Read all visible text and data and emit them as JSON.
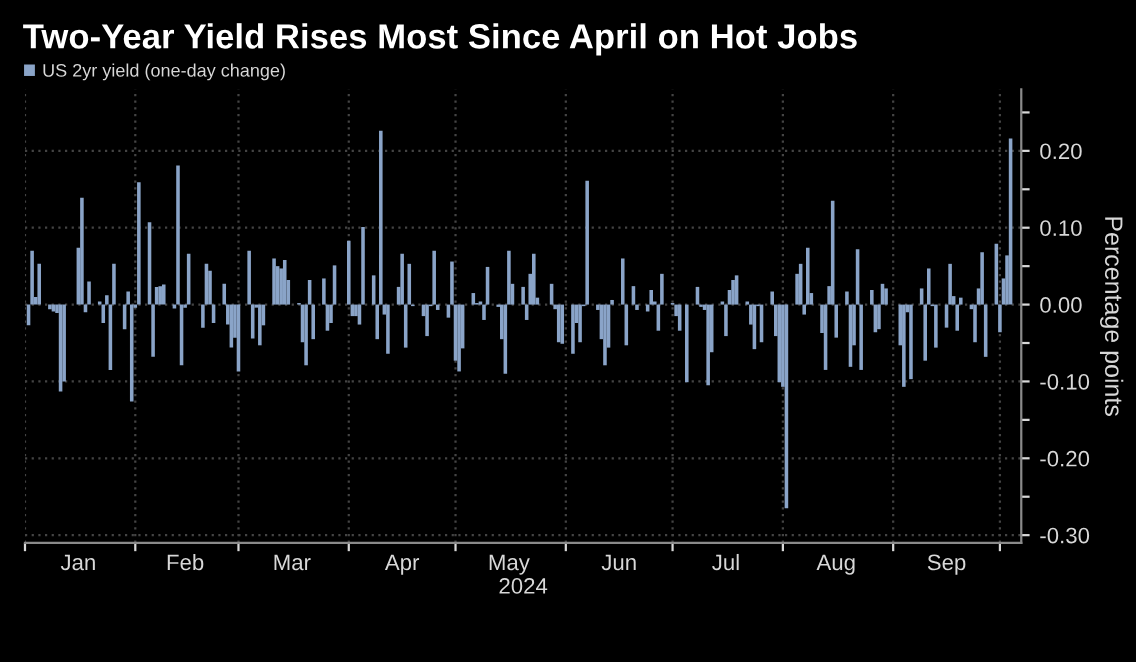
{
  "chart_data": {
    "type": "bar",
    "title": "Two-Year Yield Rises Most Since April on Hot Jobs",
    "xlabel": "2024",
    "ylabel": "Percentage points",
    "series": [
      {
        "name": "US 2yr yield (one-day change)",
        "color": "#8aa4c8",
        "x": [
          "2024-01-02",
          "2024-01-03",
          "2024-01-04",
          "2024-01-05",
          "2024-01-08",
          "2024-01-09",
          "2024-01-10",
          "2024-01-11",
          "2024-01-12",
          "2024-01-16",
          "2024-01-17",
          "2024-01-18",
          "2024-01-19",
          "2024-01-22",
          "2024-01-23",
          "2024-01-24",
          "2024-01-25",
          "2024-01-26",
          "2024-01-29",
          "2024-01-30",
          "2024-01-31",
          "2024-02-01",
          "2024-02-02",
          "2024-02-05",
          "2024-02-06",
          "2024-02-07",
          "2024-02-08",
          "2024-02-09",
          "2024-02-12",
          "2024-02-13",
          "2024-02-14",
          "2024-02-15",
          "2024-02-16",
          "2024-02-20",
          "2024-02-21",
          "2024-02-22",
          "2024-02-23",
          "2024-02-26",
          "2024-02-27",
          "2024-02-28",
          "2024-02-29",
          "2024-03-01",
          "2024-03-04",
          "2024-03-05",
          "2024-03-06",
          "2024-03-07",
          "2024-03-08",
          "2024-03-11",
          "2024-03-12",
          "2024-03-13",
          "2024-03-14",
          "2024-03-15",
          "2024-03-18",
          "2024-03-19",
          "2024-03-20",
          "2024-03-21",
          "2024-03-22",
          "2024-03-25",
          "2024-03-26",
          "2024-03-27",
          "2024-03-28",
          "2024-04-01",
          "2024-04-02",
          "2024-04-03",
          "2024-04-04",
          "2024-04-05",
          "2024-04-08",
          "2024-04-09",
          "2024-04-10",
          "2024-04-11",
          "2024-04-12",
          "2024-04-15",
          "2024-04-16",
          "2024-04-17",
          "2024-04-18",
          "2024-04-19",
          "2024-04-22",
          "2024-04-23",
          "2024-04-24",
          "2024-04-25",
          "2024-04-26",
          "2024-04-29",
          "2024-04-30",
          "2024-05-01",
          "2024-05-02",
          "2024-05-03",
          "2024-05-06",
          "2024-05-07",
          "2024-05-08",
          "2024-05-09",
          "2024-05-10",
          "2024-05-13",
          "2024-05-14",
          "2024-05-15",
          "2024-05-16",
          "2024-05-17",
          "2024-05-20",
          "2024-05-21",
          "2024-05-22",
          "2024-05-23",
          "2024-05-24",
          "2024-05-28",
          "2024-05-29",
          "2024-05-30",
          "2024-05-31",
          "2024-06-03",
          "2024-06-04",
          "2024-06-05",
          "2024-06-06",
          "2024-06-07",
          "2024-06-10",
          "2024-06-11",
          "2024-06-12",
          "2024-06-13",
          "2024-06-14",
          "2024-06-17",
          "2024-06-18",
          "2024-06-20",
          "2024-06-21",
          "2024-06-24",
          "2024-06-25",
          "2024-06-26",
          "2024-06-27",
          "2024-06-28",
          "2024-07-01",
          "2024-07-02",
          "2024-07-03",
          "2024-07-05",
          "2024-07-08",
          "2024-07-09",
          "2024-07-10",
          "2024-07-11",
          "2024-07-12",
          "2024-07-15",
          "2024-07-16",
          "2024-07-17",
          "2024-07-18",
          "2024-07-19",
          "2024-07-22",
          "2024-07-23",
          "2024-07-24",
          "2024-07-25",
          "2024-07-26",
          "2024-07-29",
          "2024-07-30",
          "2024-07-31",
          "2024-08-01",
          "2024-08-02",
          "2024-08-05",
          "2024-08-06",
          "2024-08-07",
          "2024-08-08",
          "2024-08-09",
          "2024-08-12",
          "2024-08-13",
          "2024-08-14",
          "2024-08-15",
          "2024-08-16",
          "2024-08-19",
          "2024-08-20",
          "2024-08-21",
          "2024-08-22",
          "2024-08-23",
          "2024-08-26",
          "2024-08-27",
          "2024-08-28",
          "2024-08-29",
          "2024-08-30",
          "2024-09-03",
          "2024-09-04",
          "2024-09-05",
          "2024-09-06",
          "2024-09-09",
          "2024-09-10",
          "2024-09-11",
          "2024-09-12",
          "2024-09-13",
          "2024-09-16",
          "2024-09-17",
          "2024-09-18",
          "2024-09-19",
          "2024-09-20",
          "2024-09-23",
          "2024-09-24",
          "2024-09-25",
          "2024-09-26",
          "2024-09-27",
          "2024-09-30",
          "2024-10-01",
          "2024-10-02",
          "2024-10-03",
          "2024-10-04"
        ],
        "values": [
          -0.027,
          0.07,
          0.01,
          0.053,
          -0.006,
          -0.009,
          -0.011,
          -0.113,
          -0.1,
          0.074,
          0.139,
          -0.01,
          0.03,
          0.004,
          -0.024,
          0.012,
          -0.085,
          0.053,
          -0.032,
          0.017,
          -0.126,
          -0.004,
          0.159,
          0.107,
          -0.068,
          0.023,
          0.024,
          0.026,
          -0.005,
          0.181,
          -0.079,
          -0.004,
          0.066,
          -0.03,
          0.053,
          0.044,
          -0.024,
          0.027,
          -0.026,
          -0.056,
          -0.043,
          -0.087,
          0.07,
          -0.044,
          -0.004,
          -0.053,
          -0.027,
          0.06,
          0.05,
          0.047,
          0.058,
          0.032,
          0.002,
          -0.049,
          -0.079,
          0.032,
          -0.045,
          0.034,
          -0.034,
          -0.024,
          0.051,
          0.083,
          -0.015,
          -0.015,
          -0.026,
          0.101,
          0.038,
          -0.045,
          0.226,
          -0.013,
          -0.064,
          0.023,
          0.066,
          -0.056,
          0.053,
          -0.002,
          -0.015,
          -0.041,
          -0.002,
          0.07,
          -0.007,
          -0.017,
          0.056,
          -0.073,
          -0.087,
          -0.057,
          0.015,
          0.002,
          0.004,
          -0.02,
          0.049,
          -0.003,
          -0.045,
          -0.09,
          0.07,
          0.027,
          0.023,
          -0.02,
          0.04,
          0.066,
          0.009,
          0.027,
          -0.006,
          -0.049,
          -0.051,
          -0.064,
          -0.024,
          -0.049,
          -0.002,
          0.161,
          -0.007,
          -0.045,
          -0.079,
          -0.056,
          0.006,
          0.06,
          -0.053,
          0.024,
          -0.007,
          -0.009,
          0.019,
          0.004,
          -0.034,
          0.04,
          0.002,
          -0.015,
          -0.034,
          -0.101,
          0.023,
          -0.003,
          -0.007,
          -0.105,
          -0.062,
          0.004,
          -0.041,
          0.019,
          0.032,
          0.038,
          0.004,
          -0.026,
          -0.058,
          -0.002,
          -0.049,
          0.017,
          -0.041,
          -0.101,
          -0.107,
          -0.265,
          0.04,
          0.053,
          -0.013,
          0.074,
          0.015,
          -0.037,
          -0.085,
          0.024,
          0.135,
          -0.043,
          0.017,
          -0.081,
          -0.053,
          0.072,
          -0.085,
          0.019,
          -0.036,
          -0.032,
          0.027,
          0.021,
          -0.053,
          -0.107,
          -0.01,
          -0.097,
          0.021,
          -0.073,
          0.047,
          -0.002,
          -0.056,
          -0.03,
          0.053,
          0.011,
          -0.034,
          0.009,
          -0.006,
          -0.049,
          0.021,
          0.068,
          -0.068,
          0.079,
          -0.036,
          0.034,
          0.064,
          0.216
        ]
      }
    ],
    "xlim": [
      "2024-01-01",
      "2024-10-07"
    ],
    "xticks": [
      {
        "value": "2024-01-01",
        "label": null
      },
      {
        "value": "2024-01-16",
        "label": "Jan"
      },
      {
        "value": "2024-02-01",
        "label": null
      },
      {
        "value": "2024-02-15",
        "label": "Feb"
      },
      {
        "value": "2024-03-01",
        "label": null
      },
      {
        "value": "2024-03-16",
        "label": "Mar"
      },
      {
        "value": "2024-04-01",
        "label": null
      },
      {
        "value": "2024-04-16",
        "label": "Apr"
      },
      {
        "value": "2024-05-01",
        "label": null
      },
      {
        "value": "2024-05-16",
        "label": "May"
      },
      {
        "value": "2024-06-01",
        "label": null
      },
      {
        "value": "2024-06-16",
        "label": "Jun"
      },
      {
        "value": "2024-07-01",
        "label": null
      },
      {
        "value": "2024-07-16",
        "label": "Jul"
      },
      {
        "value": "2024-08-01",
        "label": null
      },
      {
        "value": "2024-08-16",
        "label": "Aug"
      },
      {
        "value": "2024-09-01",
        "label": null
      },
      {
        "value": "2024-09-16",
        "label": "Sep"
      },
      {
        "value": "2024-10-01",
        "label": null
      }
    ],
    "ylim": [
      -0.31,
      0.28
    ],
    "yticks": [
      {
        "value": 0.25,
        "label": null
      },
      {
        "value": 0.2,
        "label": "0.20"
      },
      {
        "value": 0.15,
        "label": null
      },
      {
        "value": 0.1,
        "label": "0.10"
      },
      {
        "value": 0.05,
        "label": null
      },
      {
        "value": 0.0,
        "label": "0.00"
      },
      {
        "value": -0.05,
        "label": null
      },
      {
        "value": -0.1,
        "label": "-0.10"
      },
      {
        "value": -0.15,
        "label": null
      },
      {
        "value": -0.2,
        "label": "-0.20"
      },
      {
        "value": -0.25,
        "label": null
      },
      {
        "value": -0.3,
        "label": "-0.30"
      }
    ],
    "grid": true,
    "legend": "top left"
  }
}
